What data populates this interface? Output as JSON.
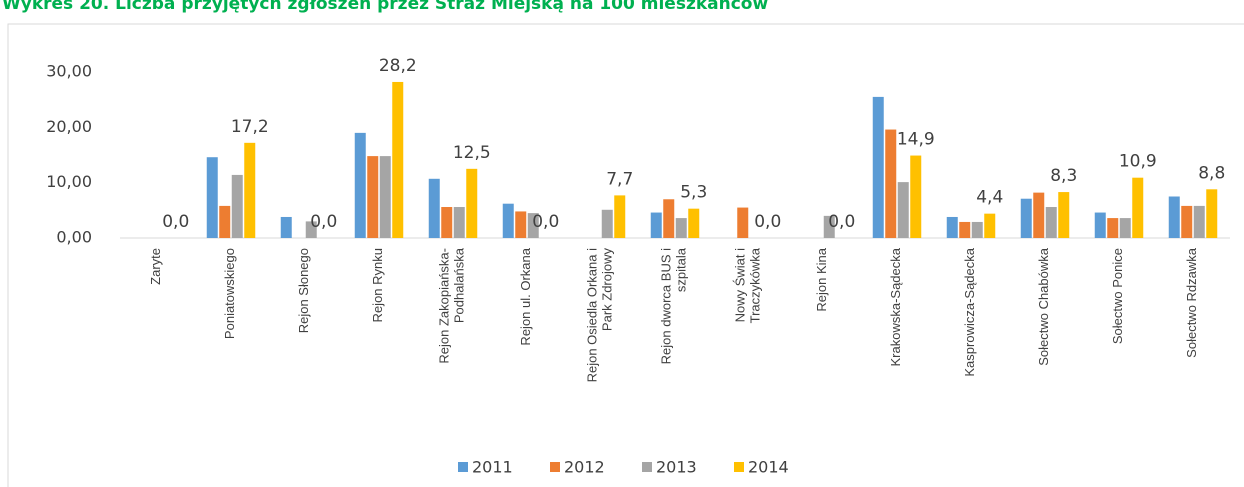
{
  "chart_data": {
    "type": "bar",
    "title": "Wykres 20. Liczba przyjętych zgłoszeń przez Straż Miejską na 100 mieszkańców",
    "categories": [
      "Zaryte",
      "Poniatowskiego",
      "Rejon Słonego",
      "Rejon Rynku",
      "Rejon Zakopiańska-\nPodhalańska",
      "Rejon ul. Orkana",
      "Rejon Osiedla Orkana i\nPark Zdrojowy",
      "Rejon dworca BUS i\nszpitala",
      "Nowy Świat i\nTraczykówka",
      "Rejon Kina",
      "Krakowska-Sądecka",
      "Kasprowicza-Sądecka",
      "Sołectwo Chabówka",
      "Sołectwo Ponice",
      "Sołectwo Rdzawka"
    ],
    "series": [
      {
        "name": "2011",
        "color": "#5b9bd5",
        "values": [
          0,
          14.6,
          3.8,
          19.0,
          10.7,
          6.2,
          0,
          4.6,
          0,
          0,
          25.5,
          3.8,
          7.1,
          4.6,
          7.5
        ]
      },
      {
        "name": "2012",
        "color": "#ed7d31",
        "values": [
          0,
          5.8,
          0,
          14.8,
          5.6,
          4.8,
          0,
          7.0,
          5.5,
          0,
          19.6,
          2.9,
          8.2,
          3.6,
          5.8
        ]
      },
      {
        "name": "2013",
        "color": "#a5a5a5",
        "values": [
          0,
          11.4,
          3.0,
          14.8,
          5.6,
          4.5,
          5.1,
          3.6,
          0,
          4.0,
          10.1,
          2.9,
          5.6,
          3.6,
          5.8
        ]
      },
      {
        "name": "2014",
        "color": "#ffc000",
        "values": [
          0,
          17.2,
          0,
          28.2,
          12.5,
          0,
          7.7,
          5.3,
          0,
          0,
          14.9,
          4.4,
          8.3,
          10.9,
          8.8
        ],
        "value_labels": [
          "0,0",
          "17,2",
          "0,0",
          "28,2",
          "12,5",
          "0,0",
          "7,7",
          "5,3",
          "0,0",
          "0,0",
          "14,9",
          "4,4",
          "8,3",
          "10,9",
          "8,8"
        ]
      }
    ],
    "ylim": [
      0,
      30
    ],
    "yticks": [
      {
        "value": 0,
        "label": "0,00"
      },
      {
        "value": 10,
        "label": "10,00"
      },
      {
        "value": 20,
        "label": "20,00"
      },
      {
        "value": 30,
        "label": "30,00"
      }
    ],
    "legend": "bottom"
  }
}
